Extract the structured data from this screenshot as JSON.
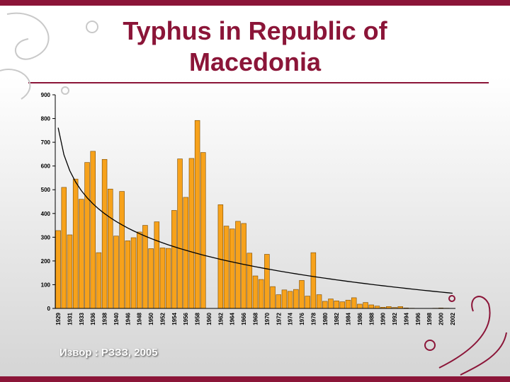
{
  "chart_data": {
    "type": "bar",
    "title": "Typhus in Republic of Macedonia",
    "source": "Извор : РЗЗЗ, 2005",
    "categories": [
      "1929",
      null,
      "1931",
      null,
      "1933",
      null,
      "1936",
      null,
      "1938",
      null,
      "1940",
      null,
      "1946",
      null,
      "1948",
      null,
      "1950",
      null,
      "1952",
      null,
      "1954",
      null,
      "1956",
      null,
      "1958",
      null,
      "1960",
      null,
      "1962",
      null,
      "1964",
      null,
      "1966",
      null,
      "1968",
      null,
      "1970",
      null,
      "1972",
      null,
      "1974",
      null,
      "1976",
      null,
      "1978",
      null,
      "1980",
      null,
      "1982",
      null,
      "1984",
      null,
      "1986",
      null,
      "1988",
      null,
      "1990",
      null,
      "1992",
      null,
      "1994",
      null,
      "1996",
      null,
      "1998",
      null,
      "2000",
      null,
      "2002"
    ],
    "values": [
      328,
      510,
      310,
      545,
      460,
      615,
      662,
      235,
      628,
      503,
      305,
      493,
      285,
      298,
      322,
      350,
      252,
      365,
      255,
      253,
      413,
      630,
      468,
      632,
      792,
      657,
      0,
      0,
      437,
      347,
      335,
      367,
      358,
      233,
      137,
      122,
      228,
      92,
      58,
      78,
      72,
      80,
      118,
      52,
      235,
      58,
      30,
      40,
      32,
      28,
      35,
      45,
      18,
      25,
      15,
      10,
      5,
      8,
      4,
      8,
      2,
      1,
      0,
      0,
      0,
      1,
      2,
      1,
      0
    ],
    "color": "#f7a21b",
    "ylim": [
      0,
      900
    ],
    "yticks": [
      0,
      100,
      200,
      300,
      400,
      500,
      600,
      700,
      800,
      900
    ],
    "trendline": "logarithmic"
  }
}
